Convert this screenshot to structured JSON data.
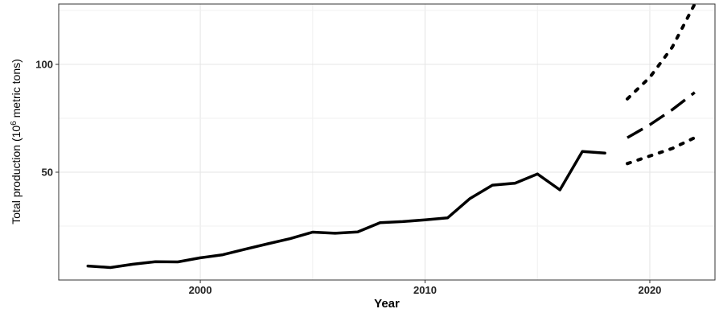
{
  "chart_data": {
    "type": "line",
    "xlabel": "Year",
    "ylabel": {
      "prefix": "Total production  (10",
      "superscript": "6",
      "suffix": " metric tons)"
    },
    "xlim": [
      1993.7,
      2022.9
    ],
    "ylim": [
      0,
      128
    ],
    "x_ticks": [
      2000,
      2010,
      2020
    ],
    "y_ticks": [
      50,
      100
    ],
    "grid": true,
    "series": [
      {
        "style": "solid",
        "x": [
          1995,
          1996,
          1997,
          1998,
          1999,
          2000,
          2001,
          2002,
          2003,
          2004,
          2005,
          2006,
          2007,
          2008,
          2009,
          2010,
          2011,
          2012,
          2013,
          2014,
          2015,
          2016,
          2017,
          2018
        ],
        "y": [
          6.5,
          5.8,
          7.3,
          8.5,
          8.4,
          10.3,
          11.7,
          14.3,
          16.8,
          19.2,
          22.2,
          21.7,
          22.3,
          26.6,
          27.1,
          27.9,
          28.8,
          37.8,
          44.0,
          44.9,
          49.2,
          41.8,
          59.6,
          58.9
        ]
      },
      {
        "style": "dashed",
        "x": [
          2019,
          2020,
          2021,
          2022
        ],
        "y": [
          66.0,
          72.0,
          79.0,
          87.0
        ]
      },
      {
        "style": "dotted",
        "x": [
          2019,
          2020,
          2021,
          2022
        ],
        "y": [
          54.0,
          57.5,
          61.0,
          66.0
        ]
      },
      {
        "style": "dotted",
        "x": [
          2019,
          2020,
          2021,
          2022
        ],
        "y": [
          84.0,
          94.0,
          108.0,
          128.0
        ]
      }
    ]
  }
}
